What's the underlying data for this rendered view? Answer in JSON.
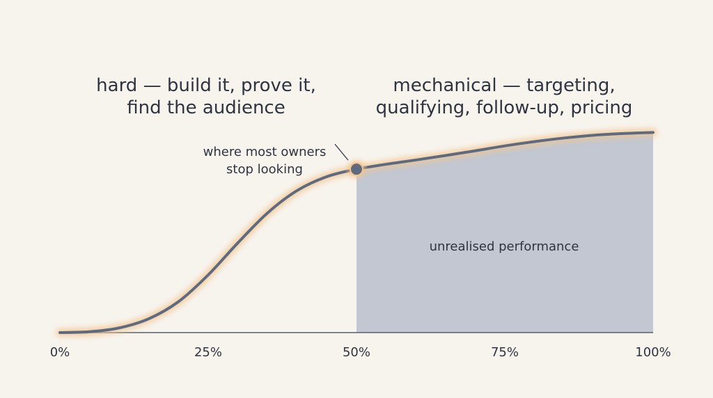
{
  "chart_data": {
    "type": "line",
    "x": [
      0,
      5,
      10,
      15,
      20,
      25,
      30,
      35,
      40,
      45,
      50,
      55,
      60,
      65,
      70,
      75,
      80,
      85,
      90,
      95,
      100
    ],
    "series": [
      {
        "values": [
          0.0,
          0.4,
          2.2,
          6.5,
          14.5,
          27.0,
          42.0,
          56.0,
          66.5,
          73.0,
          76.5,
          78.8,
          80.8,
          82.9,
          85.1,
          87.4,
          89.4,
          91.1,
          92.4,
          93.2,
          93.7
        ]
      }
    ],
    "xticks": [
      "0%",
      "25%",
      "50%",
      "75%",
      "100%"
    ],
    "xlim": [
      0,
      100
    ],
    "ylim": [
      0,
      100
    ],
    "grid": false,
    "marker": {
      "x": 50,
      "y": 76.5,
      "label_lines": [
        "where most owners",
        "stop looking"
      ]
    },
    "shaded_region": {
      "x_from": 50,
      "x_to": 100,
      "label": "unrealised performance"
    },
    "annotations": {
      "left": [
        "hard — build it, prove it,",
        "find the audience"
      ],
      "right": [
        "mechanical — targeting,",
        "qualifying, follow-up, pricing"
      ]
    },
    "colors": {
      "background": "#f7f4ee",
      "line": "#5e6a80",
      "glow": "#f3c58e",
      "fill": "#c2c7d1",
      "axis": "#55606f",
      "text": "#2f3440"
    }
  }
}
